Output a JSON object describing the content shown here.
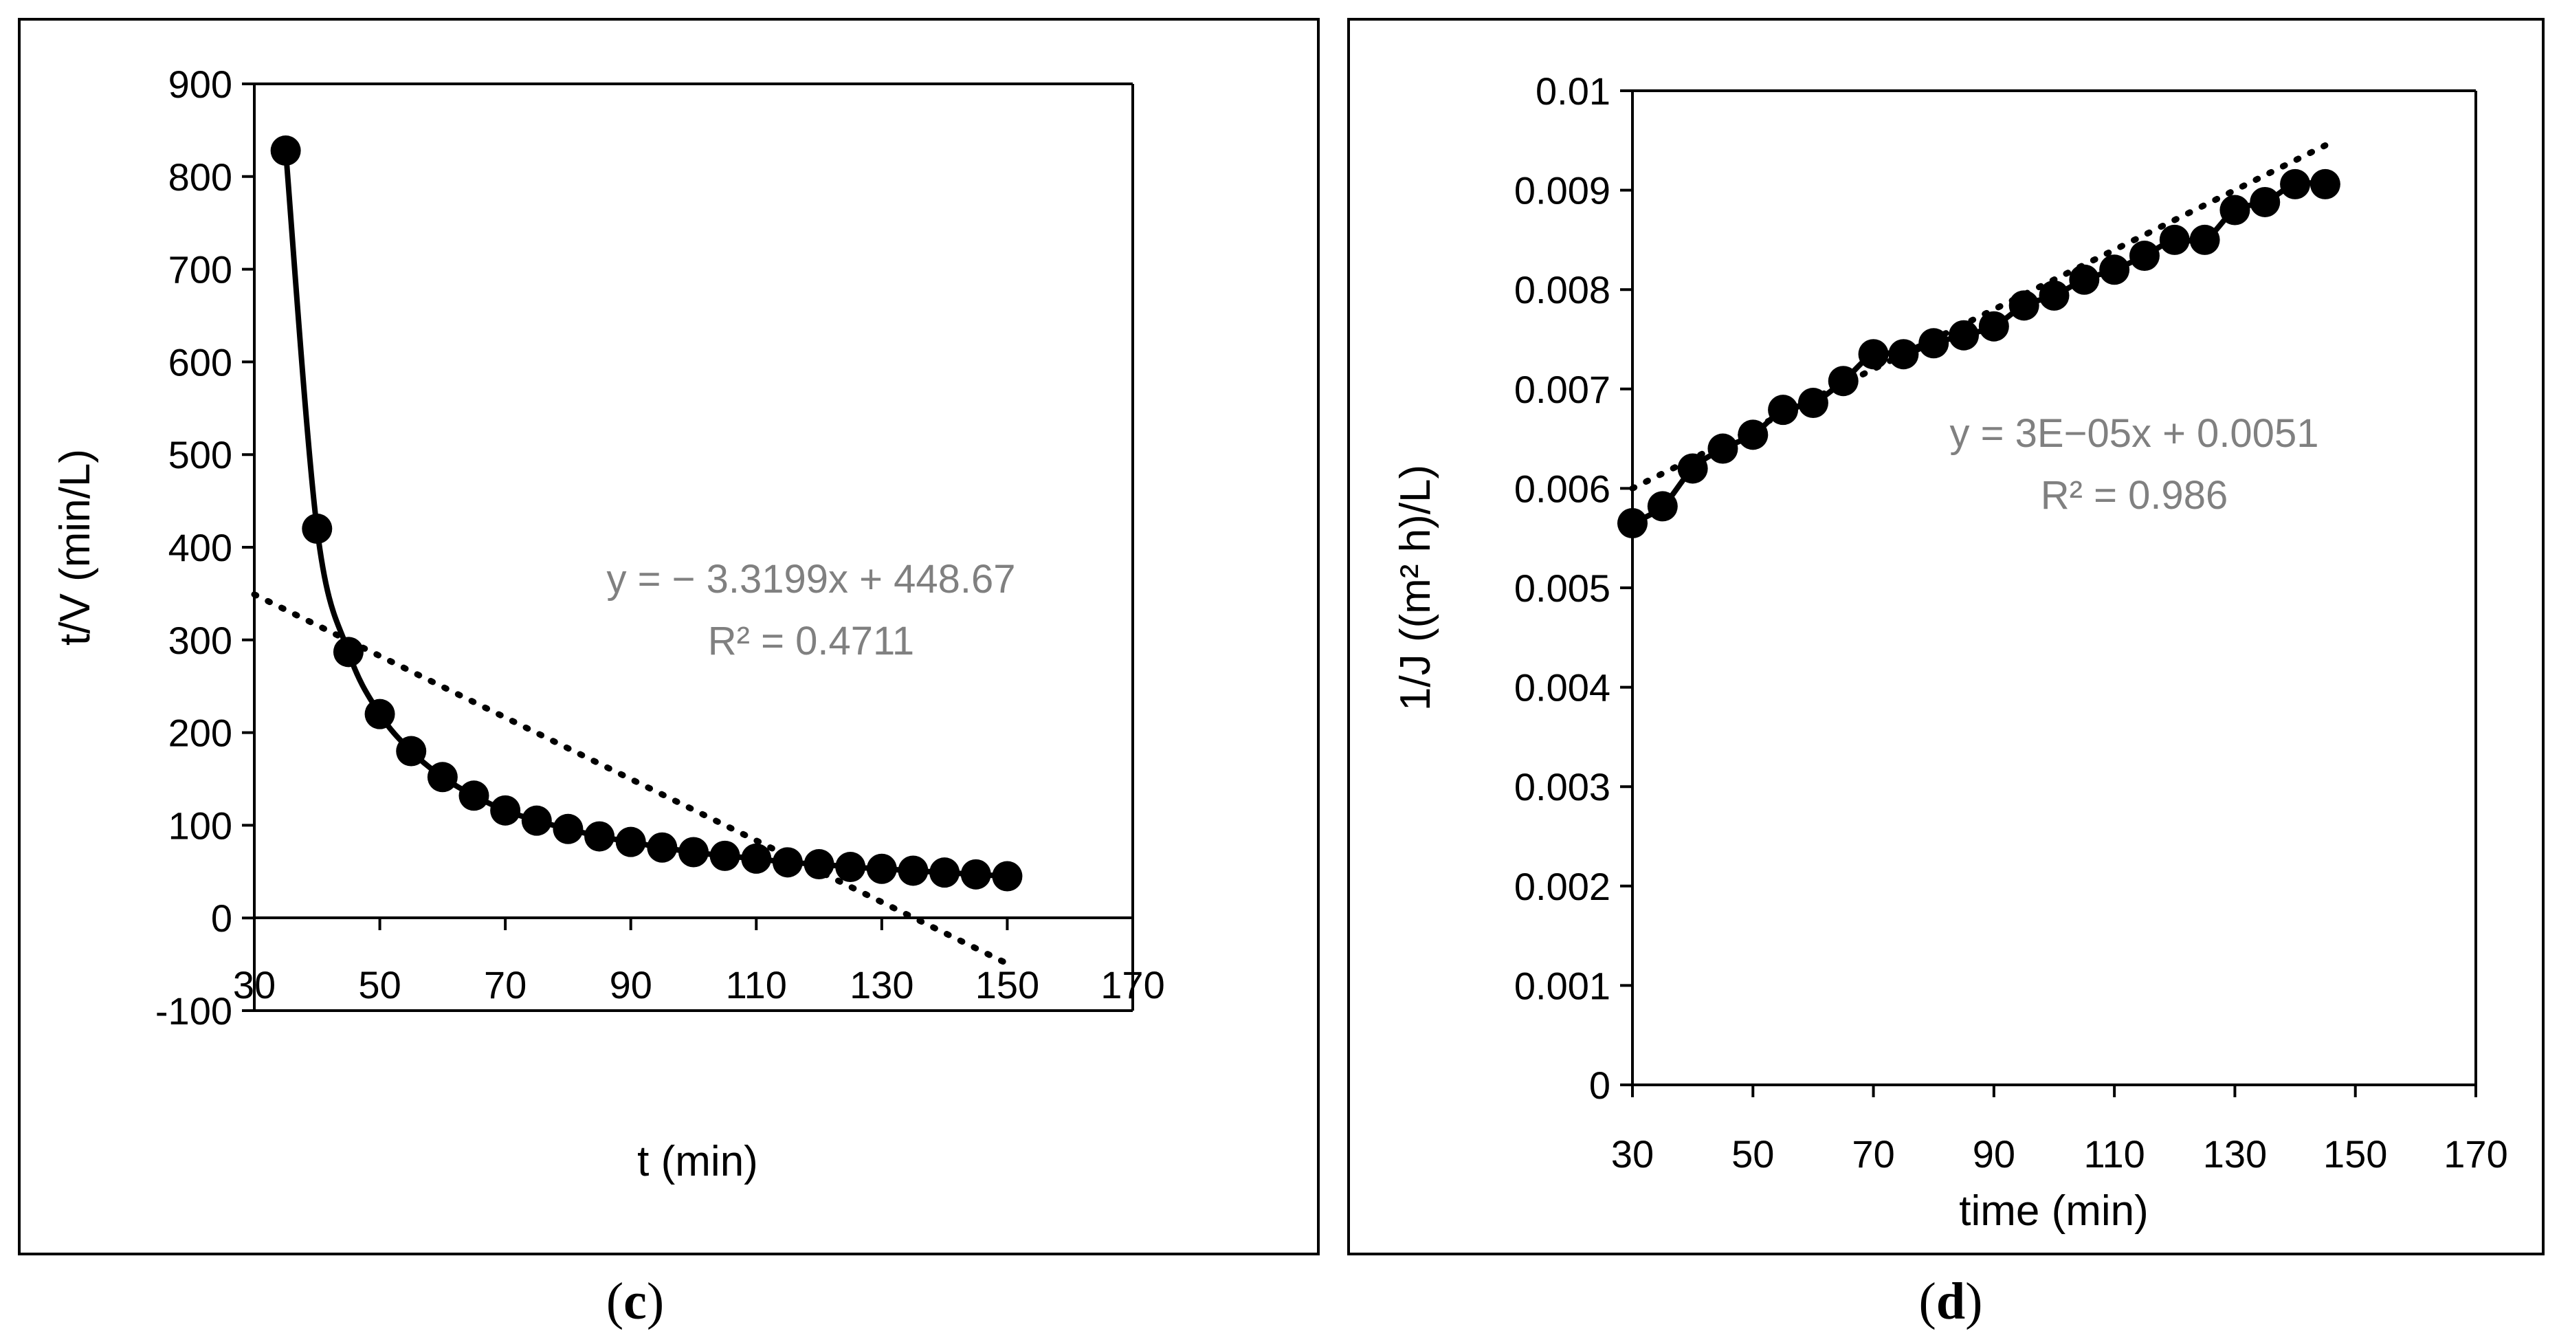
{
  "colors": {
    "marker": "#000000",
    "annotation": "#808080",
    "axis": "#000000"
  },
  "chart_data": [
    {
      "type": "scatter",
      "panel_label": "c",
      "xlabel": "t (min)",
      "ylabel": "t/V (min/L)",
      "xlim": [
        30,
        170
      ],
      "ylim": [
        -100,
        900
      ],
      "x_ticks": [
        "30",
        "50",
        "70",
        "90",
        "110",
        "130",
        "150",
        "170"
      ],
      "y_ticks": [
        "900",
        "800",
        "700",
        "600",
        "500",
        "400",
        "300",
        "200",
        "100",
        "0",
        "-100"
      ],
      "series": [
        {
          "name": "t/V",
          "x": [
            35,
            40,
            45,
            50,
            55,
            60,
            65,
            70,
            75,
            80,
            85,
            90,
            95,
            100,
            105,
            110,
            115,
            120,
            125,
            130,
            135,
            140,
            145,
            150
          ],
          "y": [
            828,
            420,
            287,
            220,
            180,
            152,
            132,
            116,
            105,
            96,
            88,
            82,
            76,
            71,
            67,
            64,
            60,
            58,
            55,
            53,
            51,
            49,
            47,
            45
          ]
        }
      ],
      "trendline": {
        "equation": "y = − 3.3199x + 448.67",
        "r2": "R² = 0.4711",
        "slope": -3.3199,
        "intercept": 448.67,
        "x_range": [
          30,
          150
        ]
      }
    },
    {
      "type": "scatter",
      "panel_label": "d",
      "xlabel": "time (min)",
      "ylabel": "1/J ((m² h)/L)",
      "xlim": [
        30,
        170
      ],
      "ylim": [
        0,
        0.01
      ],
      "x_ticks": [
        "30",
        "50",
        "70",
        "90",
        "110",
        "130",
        "150",
        "170"
      ],
      "y_ticks": [
        "0.01",
        "0.009",
        "0.008",
        "0.007",
        "0.006",
        "0.005",
        "0.004",
        "0.003",
        "0.002",
        "0.001",
        "0"
      ],
      "series": [
        {
          "name": "1/J",
          "x": [
            30,
            35,
            40,
            45,
            50,
            55,
            60,
            65,
            70,
            75,
            80,
            85,
            90,
            95,
            100,
            105,
            110,
            115,
            120,
            125,
            130,
            135,
            140,
            145
          ],
          "y": [
            0.00565,
            0.00582,
            0.0062,
            0.0064,
            0.00654,
            0.00679,
            0.00686,
            0.00708,
            0.00735,
            0.00735,
            0.00746,
            0.00754,
            0.00763,
            0.00784,
            0.00794,
            0.0081,
            0.0082,
            0.00834,
            0.0085,
            0.0085,
            0.0088,
            0.00888,
            0.00906,
            0.00906
          ]
        }
      ],
      "trendline": {
        "equation": "y = 3E−05x + 0.0051",
        "r2": "R² = 0.986",
        "slope": 3e-05,
        "intercept": 0.0051,
        "x_range": [
          30,
          145
        ]
      }
    }
  ]
}
